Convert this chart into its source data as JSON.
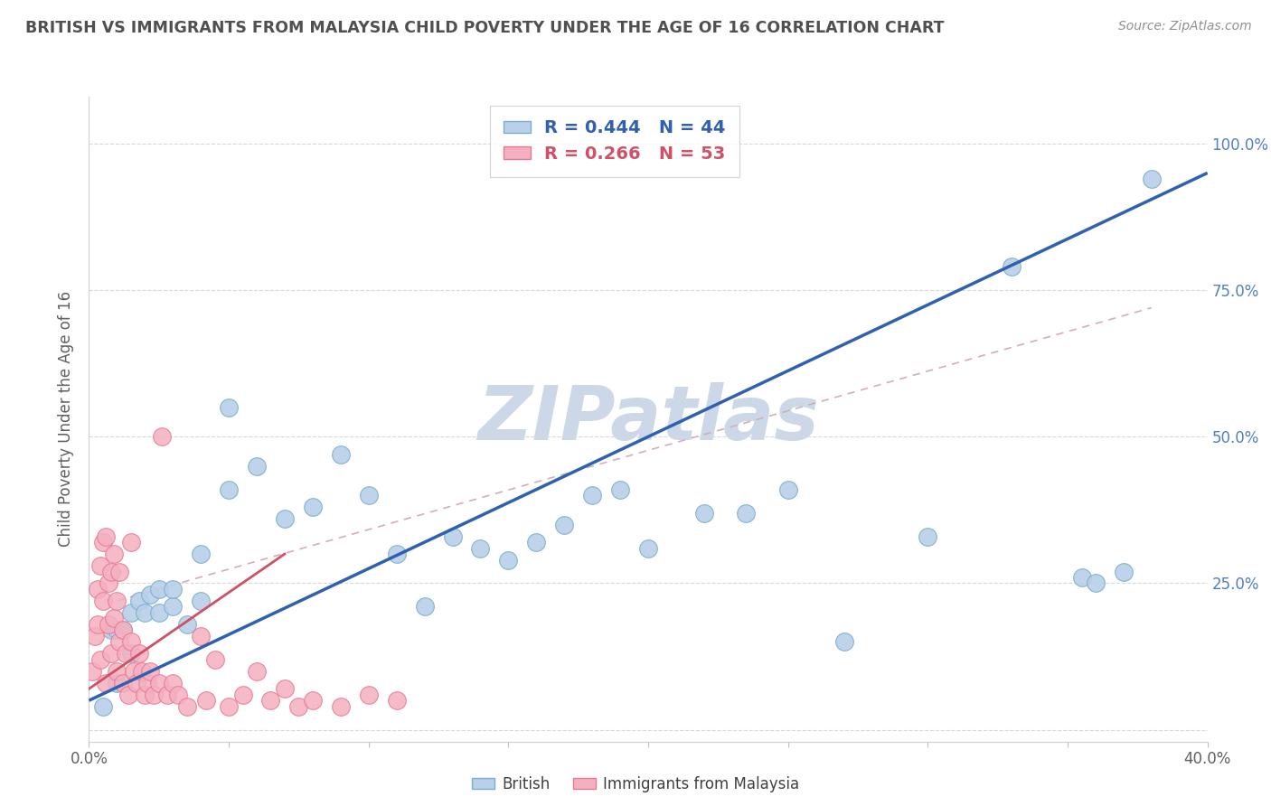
{
  "title": "BRITISH VS IMMIGRANTS FROM MALAYSIA CHILD POVERTY UNDER THE AGE OF 16 CORRELATION CHART",
  "source": "Source: ZipAtlas.com",
  "ylabel": "Child Poverty Under the Age of 16",
  "xlim": [
    0.0,
    0.4
  ],
  "ylim": [
    -0.02,
    1.08
  ],
  "x_ticks": [
    0.0,
    0.05,
    0.1,
    0.15,
    0.2,
    0.25,
    0.3,
    0.35,
    0.4
  ],
  "y_ticks": [
    0.0,
    0.25,
    0.5,
    0.75,
    1.0
  ],
  "british_R": 0.444,
  "british_N": 44,
  "immigrant_R": 0.266,
  "immigrant_N": 53,
  "british_color": "#b8d0e8",
  "british_edge_color": "#7aaecc",
  "immigrant_color": "#f4b0c0",
  "immigrant_edge_color": "#e87890",
  "british_line_color": "#3060b0",
  "immigrant_line_color": "#d05068",
  "diagonal_color": "#d0b0b8",
  "watermark_color": "#ccd8e8",
  "title_color": "#505050",
  "right_axis_color": "#5080c0",
  "british_x": [
    0.005,
    0.008,
    0.01,
    0.01,
    0.012,
    0.015,
    0.015,
    0.018,
    0.02,
    0.022,
    0.025,
    0.025,
    0.03,
    0.03,
    0.035,
    0.04,
    0.04,
    0.05,
    0.05,
    0.06,
    0.07,
    0.08,
    0.09,
    0.1,
    0.11,
    0.12,
    0.13,
    0.14,
    0.15,
    0.16,
    0.17,
    0.18,
    0.19,
    0.2,
    0.22,
    0.235,
    0.25,
    0.27,
    0.3,
    0.33,
    0.355,
    0.36,
    0.37,
    0.38
  ],
  "british_y": [
    0.04,
    0.17,
    0.08,
    0.17,
    0.17,
    0.13,
    0.2,
    0.22,
    0.2,
    0.23,
    0.2,
    0.24,
    0.21,
    0.24,
    0.18,
    0.22,
    0.3,
    0.41,
    0.55,
    0.45,
    0.36,
    0.38,
    0.47,
    0.4,
    0.3,
    0.21,
    0.33,
    0.31,
    0.29,
    0.32,
    0.35,
    0.4,
    0.41,
    0.31,
    0.37,
    0.37,
    0.41,
    0.15,
    0.33,
    0.79,
    0.26,
    0.25,
    0.27,
    0.94
  ],
  "immigrant_x": [
    0.001,
    0.002,
    0.003,
    0.003,
    0.004,
    0.004,
    0.005,
    0.005,
    0.006,
    0.006,
    0.007,
    0.007,
    0.008,
    0.008,
    0.009,
    0.009,
    0.01,
    0.01,
    0.011,
    0.011,
    0.012,
    0.012,
    0.013,
    0.014,
    0.015,
    0.015,
    0.016,
    0.017,
    0.018,
    0.019,
    0.02,
    0.021,
    0.022,
    0.023,
    0.025,
    0.026,
    0.028,
    0.03,
    0.032,
    0.035,
    0.04,
    0.042,
    0.045,
    0.05,
    0.055,
    0.06,
    0.065,
    0.07,
    0.075,
    0.08,
    0.09,
    0.1,
    0.11
  ],
  "immigrant_y": [
    0.1,
    0.16,
    0.18,
    0.24,
    0.12,
    0.28,
    0.22,
    0.32,
    0.08,
    0.33,
    0.18,
    0.25,
    0.13,
    0.27,
    0.19,
    0.3,
    0.1,
    0.22,
    0.15,
    0.27,
    0.08,
    0.17,
    0.13,
    0.06,
    0.15,
    0.32,
    0.1,
    0.08,
    0.13,
    0.1,
    0.06,
    0.08,
    0.1,
    0.06,
    0.08,
    0.5,
    0.06,
    0.08,
    0.06,
    0.04,
    0.16,
    0.05,
    0.12,
    0.04,
    0.06,
    0.1,
    0.05,
    0.07,
    0.04,
    0.05,
    0.04,
    0.06,
    0.05
  ]
}
